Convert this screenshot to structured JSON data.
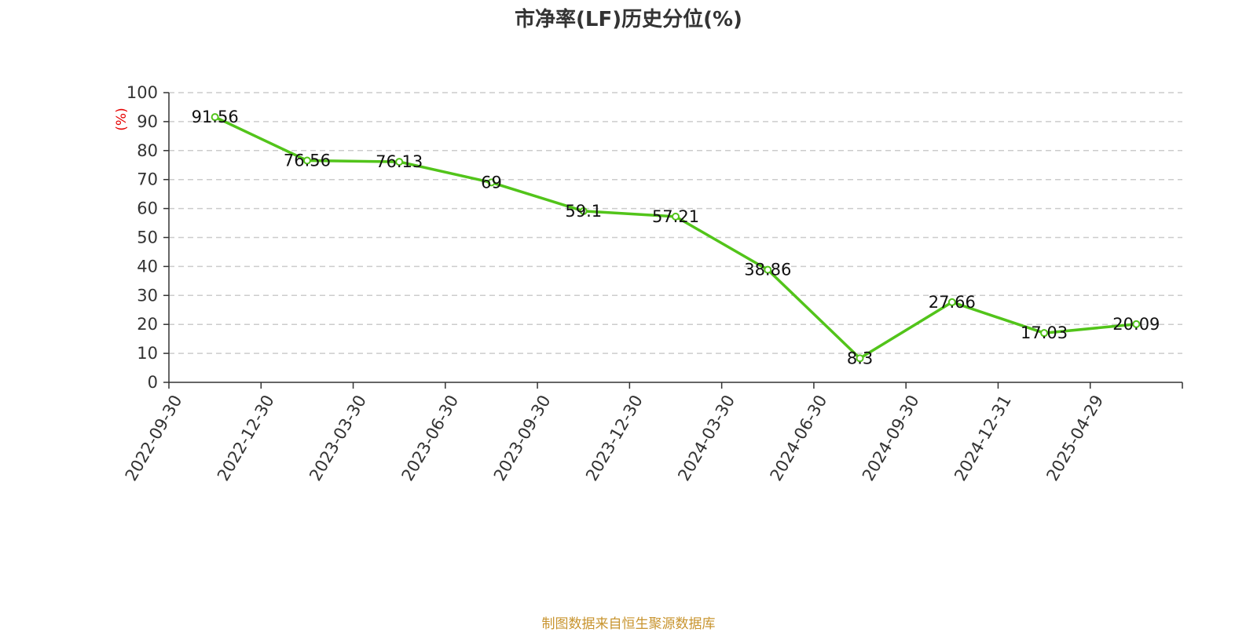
{
  "title": "市净率(LF)历史分位(%)",
  "source": "制图数据来自恒生聚源数据库",
  "colors": {
    "line": "#52c41a",
    "axis": "#333333",
    "grid": "#cccccc",
    "unit": "#e60000",
    "source": "#c8942f"
  },
  "chart_data": {
    "type": "line",
    "title": "市净率(LF)历史分位(%)",
    "ylabel": "(%)",
    "ylim": [
      0,
      100
    ],
    "yticks": [
      0,
      10,
      20,
      30,
      40,
      50,
      60,
      70,
      80,
      90,
      100
    ],
    "grid": true,
    "categories": [
      "2022-09-30",
      "2022-12-30",
      "2023-03-30",
      "2023-06-30",
      "2023-09-30",
      "2023-12-30",
      "2024-03-30",
      "2024-06-30",
      "2024-09-30",
      "2024-12-31",
      "2025-04-29"
    ],
    "series": [
      {
        "values": [
          91.56,
          76.56,
          76.13,
          69,
          59.1,
          57.21,
          38.86,
          8.3,
          27.66,
          17.03,
          20.09
        ],
        "labels": [
          "91.56",
          "76.56",
          "76.13",
          "69",
          "59.1",
          "57.21",
          "38.86",
          "8.3",
          "27.66",
          "17.03",
          "20.09"
        ]
      }
    ]
  }
}
